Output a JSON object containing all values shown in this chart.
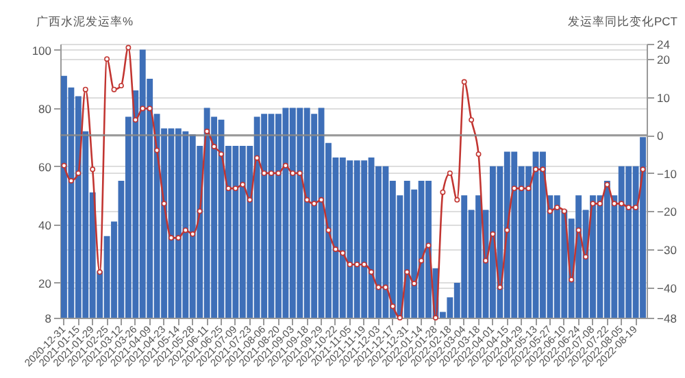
{
  "chart_data": {
    "type": "bar",
    "ylabel": "广西水泥发运率%",
    "y2label": "发运率同比变化PCT",
    "categories": [
      "2020-12-31",
      null,
      "2021-01-15",
      null,
      "2021-01-29",
      null,
      "2021-02-25",
      null,
      "2021-03-12",
      null,
      "2021-03-26",
      null,
      "2021-04-09",
      null,
      "2021-04-23",
      null,
      "2021-05-14",
      null,
      "2021-05-28",
      null,
      "2021-06-11",
      null,
      "2021-06-25",
      null,
      "2021-07-09",
      null,
      "2021-07-23",
      null,
      "2021-08-06",
      null,
      "2021-08-20",
      null,
      "2021-09-03",
      null,
      "2021-09-18",
      null,
      "2021-09-29",
      null,
      "2021-10-22",
      null,
      "2021-11-05",
      null,
      "2021-11-19",
      null,
      "2021-12-03",
      null,
      "2021-12-17",
      null,
      "2021-12-31",
      null,
      "2022-01-14",
      null,
      "2022-01-28",
      null,
      "2022-02-18",
      null,
      "2022-03-04",
      null,
      "2022-03-18",
      null,
      "2022-04-01",
      null,
      "2022-04-15",
      null,
      "2022-04-29",
      null,
      "2022-05-13",
      null,
      "2022-05-27",
      null,
      "2022-06-10",
      null,
      "2022-06-24",
      null,
      "2022-07-08",
      null,
      "2022-07-22",
      null,
      "2022-08-05",
      null,
      "2022-08-19",
      null
    ],
    "series": [
      {
        "color": "#3e6fb8",
        "values": [
          91,
          87,
          84,
          72,
          51,
          24,
          36,
          41,
          55,
          77,
          86,
          100,
          90,
          78,
          73,
          73,
          73,
          72,
          71,
          67,
          80,
          77,
          76,
          67,
          67,
          67,
          67,
          77,
          78,
          78,
          78,
          80,
          80,
          80,
          80,
          78,
          80,
          68,
          63,
          63,
          62,
          62,
          62,
          63,
          60,
          60,
          55,
          50,
          55,
          52,
          55,
          55,
          25,
          10,
          15,
          20,
          50,
          45,
          50,
          45,
          60,
          60,
          65,
          65,
          60,
          60,
          65,
          65,
          50,
          50,
          45,
          42,
          50,
          45,
          50,
          50,
          55,
          50,
          60,
          60,
          60,
          70
        ]
      },
      {
        "type": "line",
        "axis": "y2",
        "color": "#c23531",
        "values": [
          -8,
          -12,
          -10,
          12,
          -9,
          -36,
          20,
          12,
          13,
          23,
          4,
          7,
          7,
          -4,
          -18,
          -27,
          -27,
          -25,
          -26,
          -20,
          1,
          -3,
          -5,
          -14,
          -14,
          -13,
          -17,
          -6,
          -10,
          -10,
          -10,
          -8,
          -10,
          -10,
          -17,
          -18,
          -17,
          -25,
          -30,
          -31,
          -34,
          -34,
          -34,
          -36,
          -40,
          -40,
          -45,
          -48,
          -36,
          -39,
          -33,
          -29,
          -48,
          -15,
          -10,
          -17,
          14,
          4,
          -5,
          -33,
          -26,
          -40,
          -25,
          -14,
          -14,
          -14,
          -9,
          -9,
          -20,
          -19,
          -20,
          -38,
          -25,
          -32,
          -18,
          -18,
          -13,
          -18,
          -18,
          -19,
          -19,
          -9
        ]
      }
    ],
    "ylim": [
      8,
      102
    ],
    "yticks": [
      8,
      20,
      40,
      60,
      80,
      100
    ],
    "y2lim": [
      -48,
      24
    ],
    "y2ticks": [
      -48,
      -40,
      -30,
      -20,
      -10,
      0,
      10,
      20,
      24
    ],
    "ref_lines": [
      {
        "axis": "y2",
        "value": 0,
        "color": "#888888"
      }
    ],
    "grid": true,
    "marker": "circle"
  }
}
